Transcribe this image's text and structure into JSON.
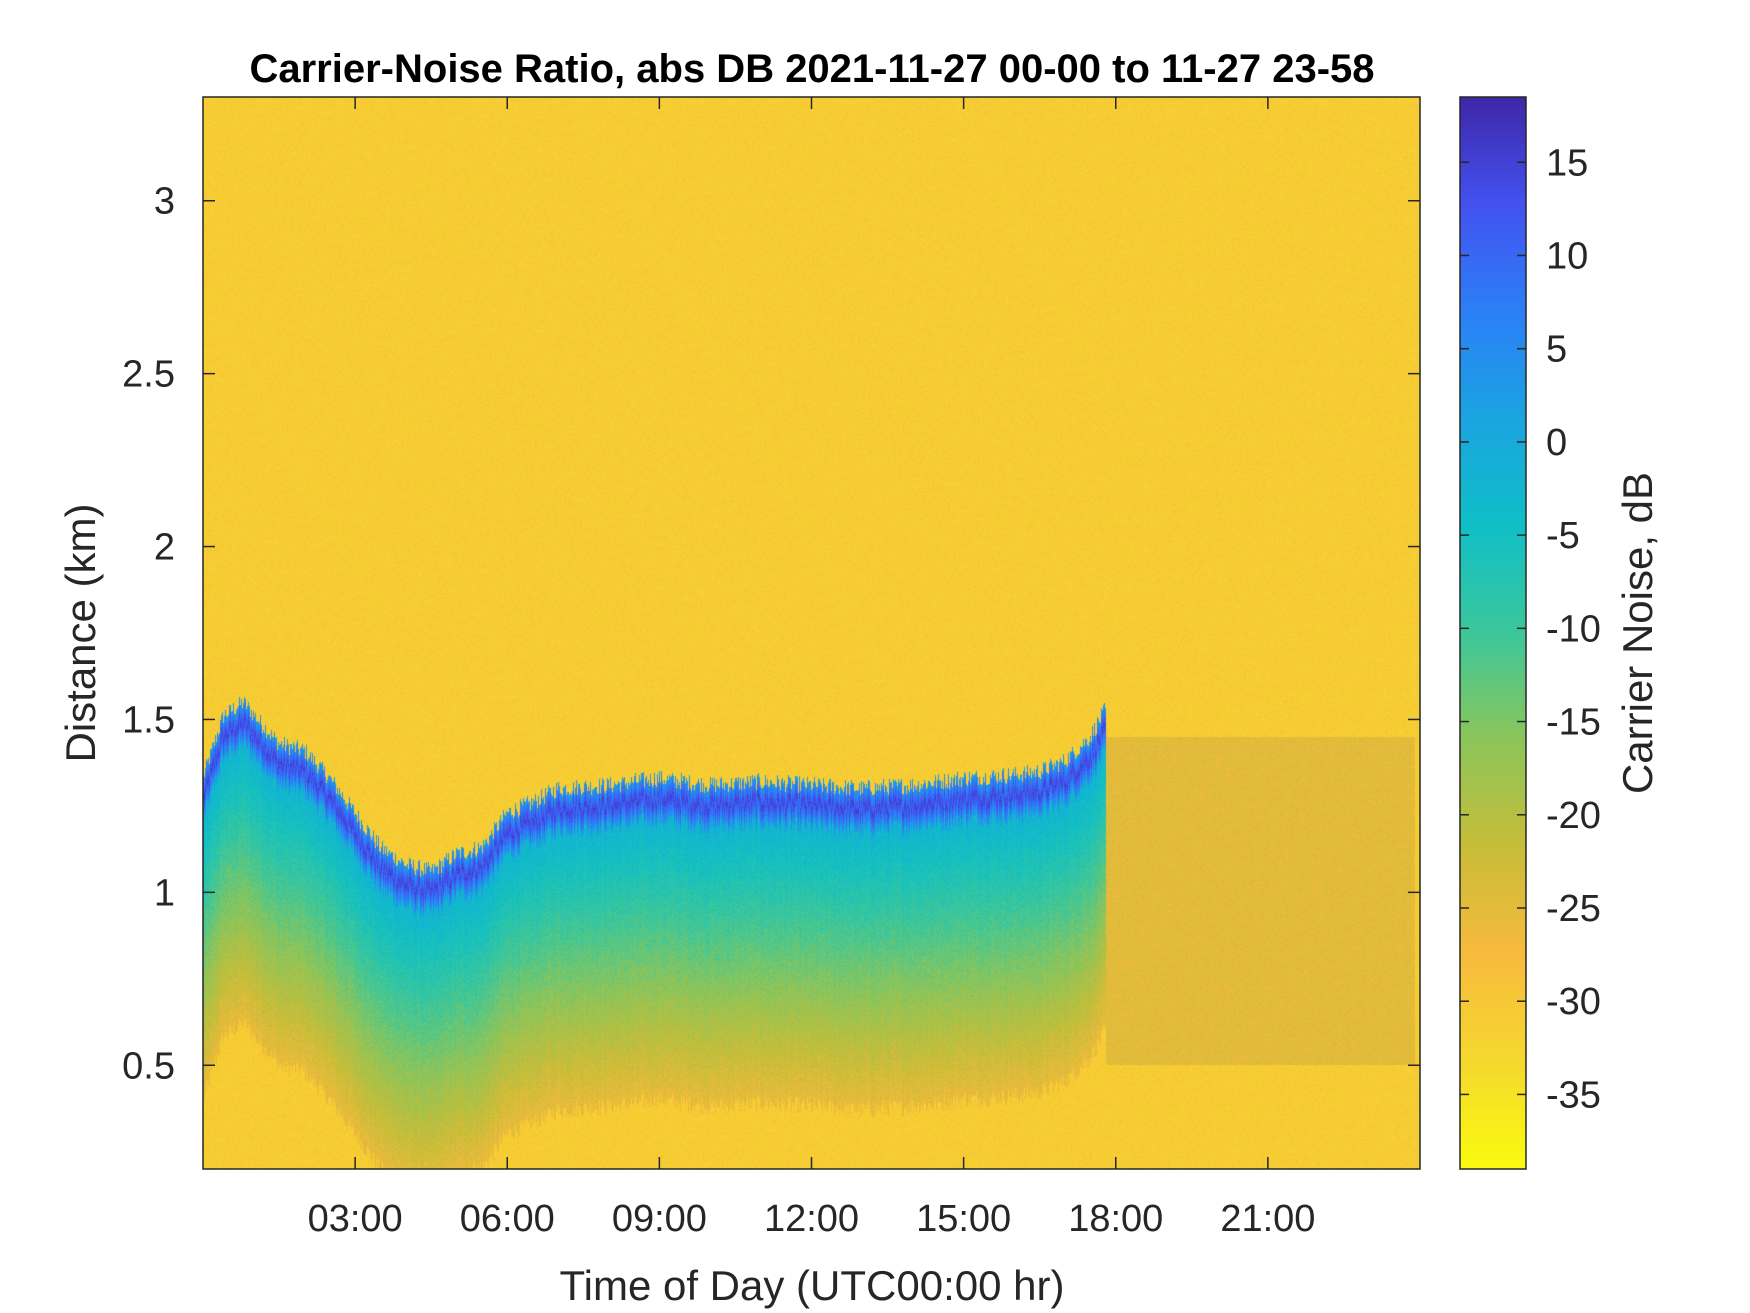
{
  "chart_data": {
    "type": "heatmap",
    "title": "Carrier-Noise Ratio, abs DB 2021-11-27 00-00 to 11-27 23-58",
    "xlabel": "Time of Day (UTC00:00 hr)",
    "ylabel": "Distance (km)",
    "x_unit": "hours",
    "xlim": [
      0,
      24
    ],
    "ylim": [
      0.2,
      3.3
    ],
    "x_ticks": [
      3,
      6,
      9,
      12,
      15,
      18,
      21
    ],
    "x_tick_labels": [
      "03:00",
      "06:00",
      "09:00",
      "12:00",
      "15:00",
      "18:00",
      "21:00"
    ],
    "y_ticks": [
      0.5,
      1,
      1.5,
      2,
      2.5,
      3
    ],
    "y_tick_labels": [
      "0.5",
      "1",
      "1.5",
      "2",
      "2.5",
      "3"
    ],
    "colorbar": {
      "label": "Carrier Noise, dB",
      "range": [
        -39,
        18.5
      ],
      "ticks": [
        15,
        10,
        5,
        0,
        -5,
        -10,
        -15,
        -20,
        -25,
        -30,
        -35
      ],
      "tick_labels": [
        "15",
        "10",
        "5",
        "0",
        "-5",
        "-10",
        "-15",
        "-20",
        "-25",
        "-30",
        "-35"
      ],
      "colormap": "parula-reversed",
      "colors": [
        "#3E26A8",
        "#4352F0",
        "#2C7FF7",
        "#1AA4E0",
        "#0FBFC6",
        "#3CC79A",
        "#8CC55A",
        "#C7BD38",
        "#F8BA3D",
        "#F5D82E",
        "#F9FB0E"
      ]
    },
    "background_value_db": -31,
    "boundary_layer": {
      "description_times": [
        0,
        0.4,
        0.8,
        1.2,
        1.5,
        2.0,
        2.5,
        3.0,
        3.5,
        4.0,
        4.5,
        5.0,
        5.5,
        6.0,
        6.5,
        7.0,
        8.0,
        9.0,
        10.0,
        11.0,
        12.0,
        13.0,
        14.0,
        15.0,
        16.0,
        16.5,
        17.0,
        17.5,
        17.8
      ],
      "top_km": [
        1.3,
        1.48,
        1.52,
        1.45,
        1.4,
        1.38,
        1.3,
        1.2,
        1.1,
        1.05,
        1.03,
        1.08,
        1.1,
        1.2,
        1.23,
        1.27,
        1.28,
        1.3,
        1.28,
        1.29,
        1.28,
        1.27,
        1.28,
        1.3,
        1.31,
        1.32,
        1.35,
        1.42,
        1.5
      ],
      "peak_db": 15
    },
    "grid": false
  }
}
